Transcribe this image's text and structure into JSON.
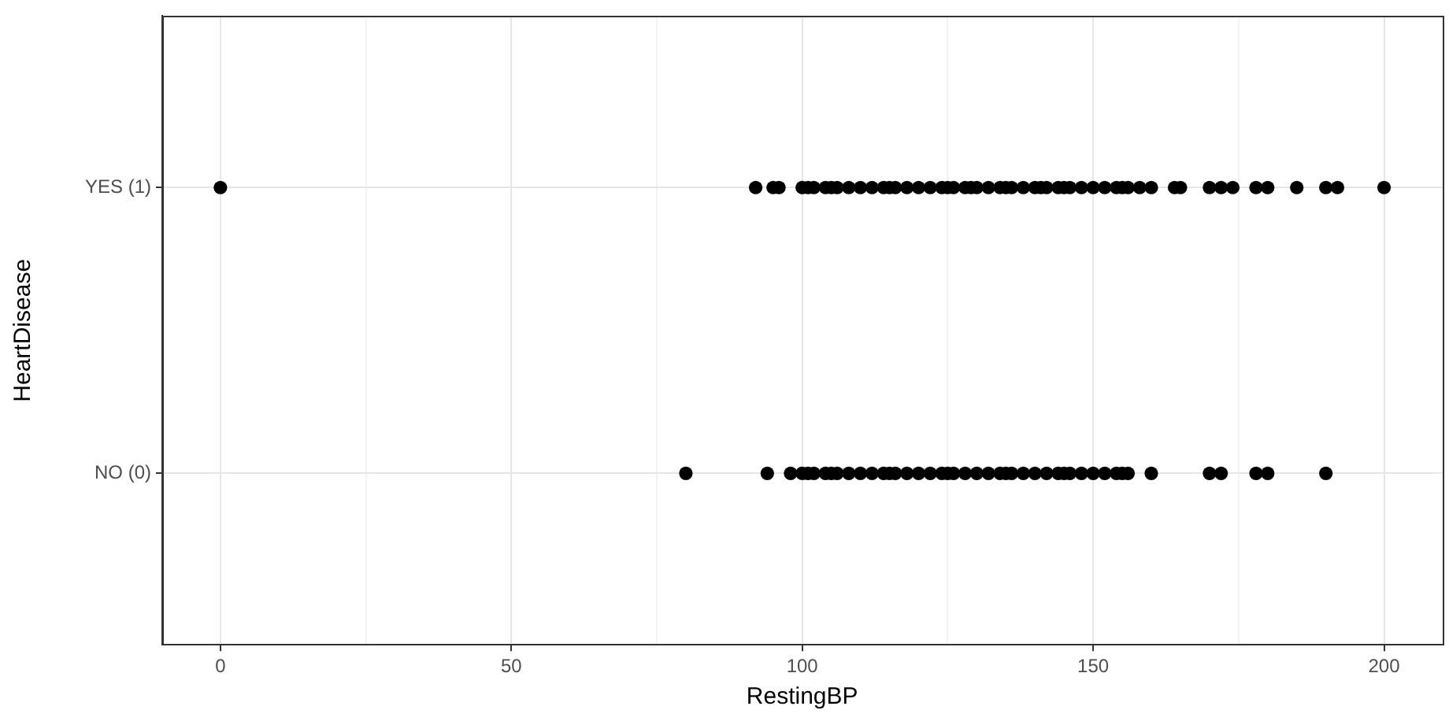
{
  "chart_data": {
    "type": "scatter",
    "orientation": "horizontal",
    "xlabel": "RestingBP",
    "ylabel": "HeartDisease",
    "categories": [
      "YES (1)",
      "NO (0)"
    ],
    "series": [
      {
        "color": "#000000",
        "x": [
          "YES (1)",
          "YES (1)",
          "YES (1)",
          "YES (1)",
          "YES (1)",
          "YES (1)",
          "YES (1)",
          "YES (1)",
          "YES (1)",
          "YES (1)",
          "YES (1)",
          "YES (1)",
          "YES (1)",
          "YES (1)",
          "YES (1)",
          "YES (1)",
          "YES (1)",
          "YES (1)",
          "YES (1)",
          "YES (1)",
          "YES (1)",
          "YES (1)",
          "YES (1)",
          "YES (1)",
          "YES (1)",
          "YES (1)",
          "YES (1)",
          "YES (1)",
          "YES (1)",
          "YES (1)",
          "YES (1)",
          "YES (1)",
          "YES (1)",
          "YES (1)",
          "YES (1)",
          "YES (1)",
          "YES (1)",
          "YES (1)",
          "YES (1)",
          "YES (1)",
          "YES (1)",
          "YES (1)",
          "YES (1)",
          "YES (1)",
          "YES (1)",
          "YES (1)",
          "YES (1)",
          "YES (1)",
          "YES (1)",
          "YES (1)",
          "YES (1)",
          "YES (1)",
          "YES (1)",
          "YES (1)",
          "YES (1)"
        ],
        "values": [
          0,
          92,
          95,
          96,
          100,
          101,
          102,
          104,
          105,
          106,
          108,
          110,
          112,
          114,
          115,
          116,
          118,
          120,
          122,
          124,
          125,
          126,
          128,
          129,
          130,
          132,
          134,
          135,
          136,
          138,
          140,
          141,
          142,
          144,
          145,
          146,
          148,
          150,
          152,
          154,
          155,
          156,
          158,
          160,
          164,
          165,
          170,
          172,
          174,
          178,
          180,
          185,
          190,
          192,
          200
        ]
      },
      {
        "color": "#000000",
        "x": [
          "NO (0)",
          "NO (0)",
          "NO (0)",
          "NO (0)",
          "NO (0)",
          "NO (0)",
          "NO (0)",
          "NO (0)",
          "NO (0)",
          "NO (0)",
          "NO (0)",
          "NO (0)",
          "NO (0)",
          "NO (0)",
          "NO (0)",
          "NO (0)",
          "NO (0)",
          "NO (0)",
          "NO (0)",
          "NO (0)",
          "NO (0)",
          "NO (0)",
          "NO (0)",
          "NO (0)",
          "NO (0)",
          "NO (0)",
          "NO (0)",
          "NO (0)",
          "NO (0)",
          "NO (0)",
          "NO (0)",
          "NO (0)",
          "NO (0)",
          "NO (0)",
          "NO (0)",
          "NO (0)",
          "NO (0)",
          "NO (0)",
          "NO (0)",
          "NO (0)",
          "NO (0)",
          "NO (0)",
          "NO (0)",
          "NO (0)",
          "NO (0)"
        ],
        "values": [
          80,
          94,
          98,
          100,
          101,
          102,
          104,
          105,
          106,
          108,
          110,
          112,
          114,
          115,
          116,
          118,
          120,
          122,
          124,
          125,
          126,
          128,
          130,
          132,
          134,
          135,
          136,
          138,
          140,
          142,
          144,
          145,
          146,
          148,
          150,
          152,
          154,
          155,
          156,
          160,
          170,
          172,
          178,
          180,
          190
        ]
      }
    ],
    "xlim": [
      -10,
      210
    ],
    "xticks": [
      0,
      {
        "value": 25,
        "label": null
      },
      50,
      {
        "value": 75,
        "label": null
      },
      100,
      {
        "value": 125,
        "label": null
      },
      150,
      {
        "value": 175,
        "label": null
      },
      200
    ],
    "grid": true,
    "legend": false,
    "marker": "circle"
  }
}
